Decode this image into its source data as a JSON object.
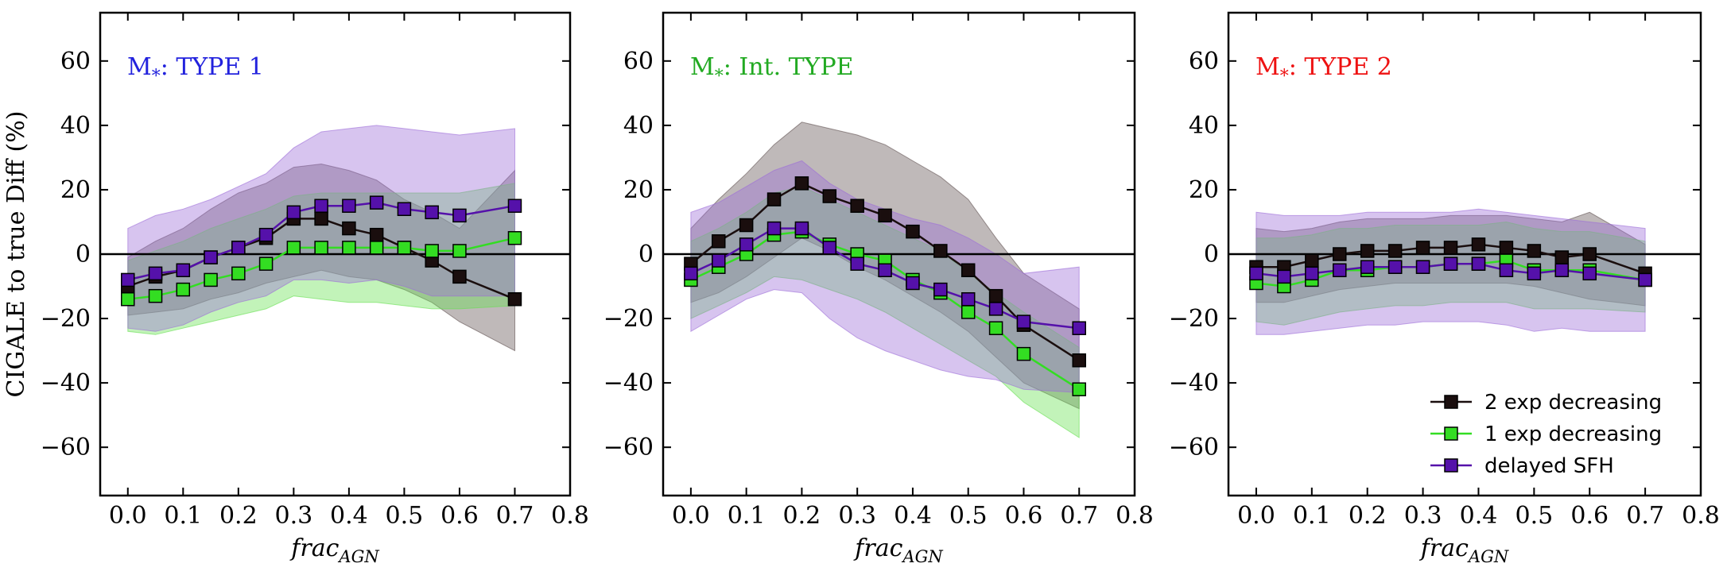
{
  "chart_data": [
    {
      "type": "line",
      "title": "M*: TYPE 1",
      "title_parts": {
        "main": "M",
        "sub": "*",
        "rest": ": TYPE 1"
      },
      "title_color": "#2222dd",
      "xlabel": "frac",
      "xlabel_sub": "AGN",
      "ylabel": "CIGALE to true Diff (%)",
      "xlim": [
        -0.05,
        0.8
      ],
      "ylim": [
        -75,
        75
      ],
      "xticks": [
        0.0,
        0.1,
        0.2,
        0.3,
        0.4,
        0.5,
        0.6,
        0.7,
        0.8
      ],
      "xtick_labels": [
        "0.0",
        "0.1",
        "0.2",
        "0.3",
        "0.4",
        "0.5",
        "0.6",
        "0.7",
        "0.8"
      ],
      "yticks": [
        60,
        40,
        20,
        0,
        -20,
        -40,
        -60
      ],
      "ytick_labels": [
        "60",
        "40",
        "20",
        "0",
        "−20",
        "−40",
        "−60"
      ],
      "series": [
        {
          "name": "2 exp decreasing",
          "color": "#1a0e0e",
          "band_color": "#5f5050",
          "x": [
            0.0,
            0.05,
            0.1,
            0.15,
            0.2,
            0.25,
            0.3,
            0.35,
            0.4,
            0.45,
            0.5,
            0.55,
            0.6,
            0.7
          ],
          "values": [
            -10,
            -7,
            -5,
            -1,
            2,
            5,
            11,
            11,
            8,
            6,
            2,
            -2,
            -7,
            -14
          ],
          "upper": [
            -1,
            4,
            8,
            14,
            19,
            22,
            27,
            28,
            26,
            23,
            17,
            13,
            8,
            26
          ],
          "lower": [
            -19,
            -18,
            -17,
            -14,
            -12,
            -9,
            -7,
            -5,
            -7,
            -8,
            -11,
            -15,
            -21,
            -30
          ]
        },
        {
          "name": "1 exp decreasing",
          "color": "#33dd22",
          "band_color": "#66e050",
          "x": [
            0.0,
            0.05,
            0.1,
            0.15,
            0.2,
            0.25,
            0.3,
            0.35,
            0.4,
            0.45,
            0.5,
            0.55,
            0.6,
            0.7
          ],
          "values": [
            -14,
            -13,
            -11,
            -8,
            -6,
            -3,
            2,
            2,
            2,
            2,
            2,
            1,
            1,
            5
          ],
          "upper": [
            -2,
            1,
            4,
            8,
            11,
            14,
            18,
            19,
            19,
            19,
            19,
            19,
            19,
            22
          ],
          "lower": [
            -24,
            -25,
            -23,
            -21,
            -19,
            -17,
            -13,
            -14,
            -15,
            -15,
            -16,
            -17,
            -17,
            -16
          ]
        },
        {
          "name": "delayed SFH",
          "color": "#5511aa",
          "band_color": "#9c6cd8",
          "x": [
            0.0,
            0.05,
            0.1,
            0.15,
            0.2,
            0.25,
            0.3,
            0.35,
            0.4,
            0.45,
            0.5,
            0.55,
            0.6,
            0.7
          ],
          "values": [
            -8,
            -6,
            -5,
            -1,
            2,
            6,
            13,
            15,
            15,
            16,
            14,
            13,
            12,
            15
          ],
          "upper": [
            8,
            12,
            14,
            17,
            21,
            25,
            33,
            38,
            39,
            40,
            39,
            38,
            37,
            39
          ],
          "lower": [
            -23,
            -24,
            -22,
            -18,
            -15,
            -13,
            -8,
            -8,
            -9,
            -8,
            -10,
            -13,
            -13,
            -13
          ]
        }
      ]
    },
    {
      "type": "line",
      "title": "M*: Int. TYPE",
      "title_parts": {
        "main": "M",
        "sub": "*",
        "rest": ": Int. TYPE"
      },
      "title_color": "#22aa22",
      "xlabel": "frac",
      "xlabel_sub": "AGN",
      "xlim": [
        -0.05,
        0.8
      ],
      "ylim": [
        -75,
        75
      ],
      "xticks": [
        0.0,
        0.1,
        0.2,
        0.3,
        0.4,
        0.5,
        0.6,
        0.7,
        0.8
      ],
      "xtick_labels": [
        "0.0",
        "0.1",
        "0.2",
        "0.3",
        "0.4",
        "0.5",
        "0.6",
        "0.7",
        "0.8"
      ],
      "yticks": [
        60,
        40,
        20,
        0,
        -20,
        -40,
        -60
      ],
      "ytick_labels": [
        "60",
        "40",
        "20",
        "0",
        "−20",
        "−40",
        "−60"
      ],
      "series": [
        {
          "name": "2 exp decreasing",
          "color": "#1a0e0e",
          "band_color": "#5f5050",
          "x": [
            0.0,
            0.05,
            0.1,
            0.15,
            0.2,
            0.25,
            0.3,
            0.35,
            0.4,
            0.45,
            0.5,
            0.55,
            0.6,
            0.7
          ],
          "values": [
            -3,
            4,
            9,
            17,
            22,
            18,
            15,
            12,
            7,
            1,
            -5,
            -13,
            -22,
            -33
          ],
          "upper": [
            8,
            17,
            25,
            34,
            41,
            39,
            37,
            34,
            29,
            24,
            17,
            5,
            -6,
            -17
          ],
          "lower": [
            -15,
            -12,
            -7,
            -1,
            5,
            1,
            -4,
            -8,
            -13,
            -18,
            -24,
            -32,
            -40,
            -48
          ]
        },
        {
          "name": "1 exp decreasing",
          "color": "#33dd22",
          "band_color": "#66e050",
          "x": [
            0.0,
            0.05,
            0.1,
            0.15,
            0.2,
            0.25,
            0.3,
            0.35,
            0.4,
            0.45,
            0.5,
            0.55,
            0.6,
            0.7
          ],
          "values": [
            -8,
            -4,
            0,
            6,
            7,
            3,
            0,
            -2,
            -8,
            -12,
            -18,
            -23,
            -31,
            -42
          ],
          "upper": [
            4,
            8,
            13,
            19,
            21,
            17,
            13,
            9,
            5,
            1,
            -6,
            -12,
            -18,
            -29
          ],
          "lower": [
            -20,
            -16,
            -12,
            -7,
            -8,
            -11,
            -14,
            -18,
            -23,
            -28,
            -33,
            -38,
            -46,
            -57
          ]
        },
        {
          "name": "delayed SFH",
          "color": "#5511aa",
          "band_color": "#9c6cd8",
          "x": [
            0.0,
            0.05,
            0.1,
            0.15,
            0.2,
            0.25,
            0.3,
            0.35,
            0.4,
            0.45,
            0.5,
            0.55,
            0.6,
            0.7
          ],
          "values": [
            -6,
            -2,
            3,
            8,
            8,
            2,
            -3,
            -5,
            -9,
            -11,
            -14,
            -17,
            -21,
            -23
          ],
          "upper": [
            13,
            16,
            21,
            26,
            29,
            22,
            17,
            14,
            11,
            9,
            5,
            0,
            -6,
            -4
          ],
          "lower": [
            -24,
            -19,
            -14,
            -11,
            -12,
            -20,
            -26,
            -30,
            -33,
            -36,
            -38,
            -39,
            -42,
            -43
          ]
        }
      ]
    },
    {
      "type": "line",
      "title": "M*: TYPE 2",
      "title_parts": {
        "main": "M",
        "sub": "*",
        "rest": ": TYPE 2"
      },
      "title_color": "#ee1111",
      "xlabel": "frac",
      "xlabel_sub": "AGN",
      "xlim": [
        -0.05,
        0.8
      ],
      "ylim": [
        -75,
        75
      ],
      "xticks": [
        0.0,
        0.1,
        0.2,
        0.3,
        0.4,
        0.5,
        0.6,
        0.7,
        0.8
      ],
      "xtick_labels": [
        "0.0",
        "0.1",
        "0.2",
        "0.3",
        "0.4",
        "0.5",
        "0.6",
        "0.7",
        "0.8"
      ],
      "yticks": [
        60,
        40,
        20,
        0,
        -20,
        -40,
        -60
      ],
      "ytick_labels": [
        "60",
        "40",
        "20",
        "0",
        "−20",
        "−40",
        "−60"
      ],
      "legend": {
        "placement": "bottom-right",
        "entries": [
          "2 exp decreasing",
          "1 exp decreasing",
          "delayed SFH"
        ]
      },
      "series": [
        {
          "name": "2 exp decreasing",
          "color": "#1a0e0e",
          "band_color": "#5f5050",
          "x": [
            0.0,
            0.05,
            0.1,
            0.15,
            0.2,
            0.25,
            0.3,
            0.35,
            0.4,
            0.45,
            0.5,
            0.55,
            0.6,
            0.7
          ],
          "values": [
            -4,
            -4,
            -2,
            0,
            1,
            1,
            2,
            2,
            3,
            2,
            1,
            -1,
            0,
            -6
          ],
          "upper": [
            8,
            7,
            8,
            10,
            11,
            11,
            11,
            12,
            12,
            12,
            11,
            10,
            13,
            3
          ],
          "lower": [
            -15,
            -15,
            -13,
            -11,
            -10,
            -9,
            -9,
            -9,
            -9,
            -9,
            -10,
            -12,
            -14,
            -16
          ]
        },
        {
          "name": "1 exp decreasing",
          "color": "#33dd22",
          "band_color": "#66e050",
          "x": [
            0.0,
            0.05,
            0.1,
            0.15,
            0.2,
            0.25,
            0.3,
            0.35,
            0.4,
            0.45,
            0.5,
            0.55,
            0.6,
            0.7
          ],
          "values": [
            -9,
            -10,
            -8,
            -5,
            -5,
            -4,
            -4,
            -3,
            -3,
            -2,
            -5,
            -5,
            -5,
            -8
          ],
          "upper": [
            5,
            5,
            6,
            8,
            8,
            9,
            9,
            9,
            9,
            10,
            8,
            7,
            7,
            4
          ],
          "lower": [
            -21,
            -22,
            -20,
            -18,
            -17,
            -16,
            -16,
            -15,
            -15,
            -15,
            -17,
            -17,
            -17,
            -18
          ]
        },
        {
          "name": "delayed SFH",
          "color": "#5511aa",
          "band_color": "#9c6cd8",
          "x": [
            0.0,
            0.05,
            0.1,
            0.15,
            0.2,
            0.25,
            0.3,
            0.35,
            0.4,
            0.45,
            0.5,
            0.55,
            0.6,
            0.7
          ],
          "values": [
            -6,
            -7,
            -6,
            -5,
            -4,
            -4,
            -4,
            -3,
            -3,
            -5,
            -6,
            -5,
            -6,
            -8
          ],
          "upper": [
            13,
            12,
            12,
            12,
            13,
            13,
            13,
            13,
            14,
            13,
            12,
            11,
            10,
            8
          ],
          "lower": [
            -25,
            -25,
            -24,
            -23,
            -22,
            -22,
            -21,
            -21,
            -21,
            -22,
            -24,
            -23,
            -24,
            -24
          ]
        }
      ]
    }
  ]
}
